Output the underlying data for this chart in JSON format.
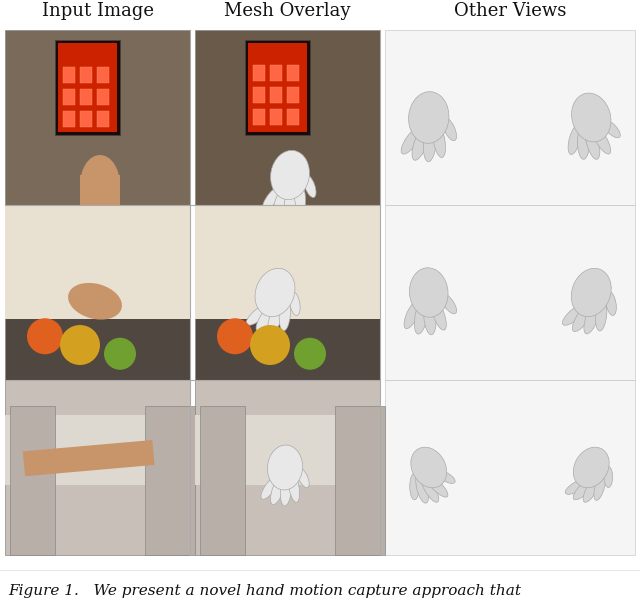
{
  "title_col1": "Input Image",
  "title_col2": "Mesh Overlay",
  "title_col3": "Other Views",
  "caption": "Figure 1.   We present a novel hand motion capture approach that",
  "bg_color": "#ffffff",
  "title_fontsize": 13,
  "caption_fontsize": 11,
  "fig_width": 6.4,
  "fig_height": 6.09,
  "header_color": "#111111",
  "border_color": "#cccccc",
  "cell_bg_left": "#e8e0d8",
  "cell_bg_right": "#f0f0f0",
  "hand_mesh_color": "#d8d8d8",
  "n_rows": 3,
  "row_colors": [
    "#c8b8a0",
    "#a0a090",
    "#d8d0c8"
  ],
  "col1_colors": [
    "#9b8070",
    "#787868",
    "#c0b8b0"
  ],
  "col2_colors": [
    "#b0a898",
    "#808878",
    "#c8c0b8"
  ]
}
